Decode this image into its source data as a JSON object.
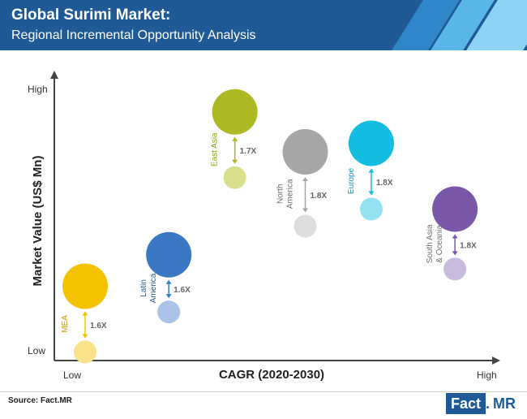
{
  "header": {
    "title": "Global Surimi Market:",
    "subtitle": "Regional Incremental Opportunity Analysis",
    "colors": {
      "bg": "#1f5a96",
      "stripe1": "#2f86c8",
      "stripe2": "#59b6e8",
      "stripe3": "#8dd3f5"
    }
  },
  "chart_data": {
    "type": "scatter",
    "xlabel": "CAGR (2020-2030)",
    "ylabel": "Market Value (US$ Mn)",
    "x_low_label": "Low",
    "x_high_label": "High",
    "y_low_label": "Low",
    "y_high_label": "High",
    "regions": [
      {
        "label_lines": [
          "MEA"
        ],
        "multiplier": "1.6X",
        "cagr": 0.07,
        "value_2020": 0.03,
        "value_2030": 0.26,
        "color": "#f5c200",
        "light_color": "#f9e28a",
        "label_color": "#c89a00"
      },
      {
        "label_lines": [
          "Latin",
          "America"
        ],
        "multiplier": "1.6X",
        "cagr": 0.26,
        "value_2020": 0.17,
        "value_2030": 0.37,
        "color": "#3a78c3",
        "light_color": "#a9c4e6",
        "label_color": "#1f5a96"
      },
      {
        "label_lines": [
          "East Asia"
        ],
        "multiplier": "1.7X",
        "cagr": 0.41,
        "value_2020": 0.64,
        "value_2030": 0.87,
        "color": "#adb823",
        "light_color": "#d9df8b",
        "label_color": "#8f9a10"
      },
      {
        "label_lines": [
          "North",
          "America"
        ],
        "multiplier": "1.8X",
        "cagr": 0.57,
        "value_2020": 0.47,
        "value_2030": 0.73,
        "color": "#a6a6a6",
        "light_color": "#dedede",
        "label_color": "#6e6e6e"
      },
      {
        "label_lines": [
          "Europe"
        ],
        "multiplier": "1.8X",
        "cagr": 0.72,
        "value_2020": 0.53,
        "value_2030": 0.76,
        "color": "#12bde0",
        "light_color": "#93e2f3",
        "label_color": "#0e96b5"
      },
      {
        "label_lines": [
          "South Asia",
          "& Oceania"
        ],
        "multiplier": "1.8X",
        "cagr": 0.91,
        "value_2020": 0.32,
        "value_2030": 0.53,
        "color": "#7a58a9",
        "light_color": "#c9bbdd",
        "label_color": "#6f6f6f"
      }
    ]
  },
  "footer": {
    "source": "Source: Fact.MR",
    "logo_fact": "Fact",
    "logo_dot": ".",
    "logo_mr": "MR"
  }
}
